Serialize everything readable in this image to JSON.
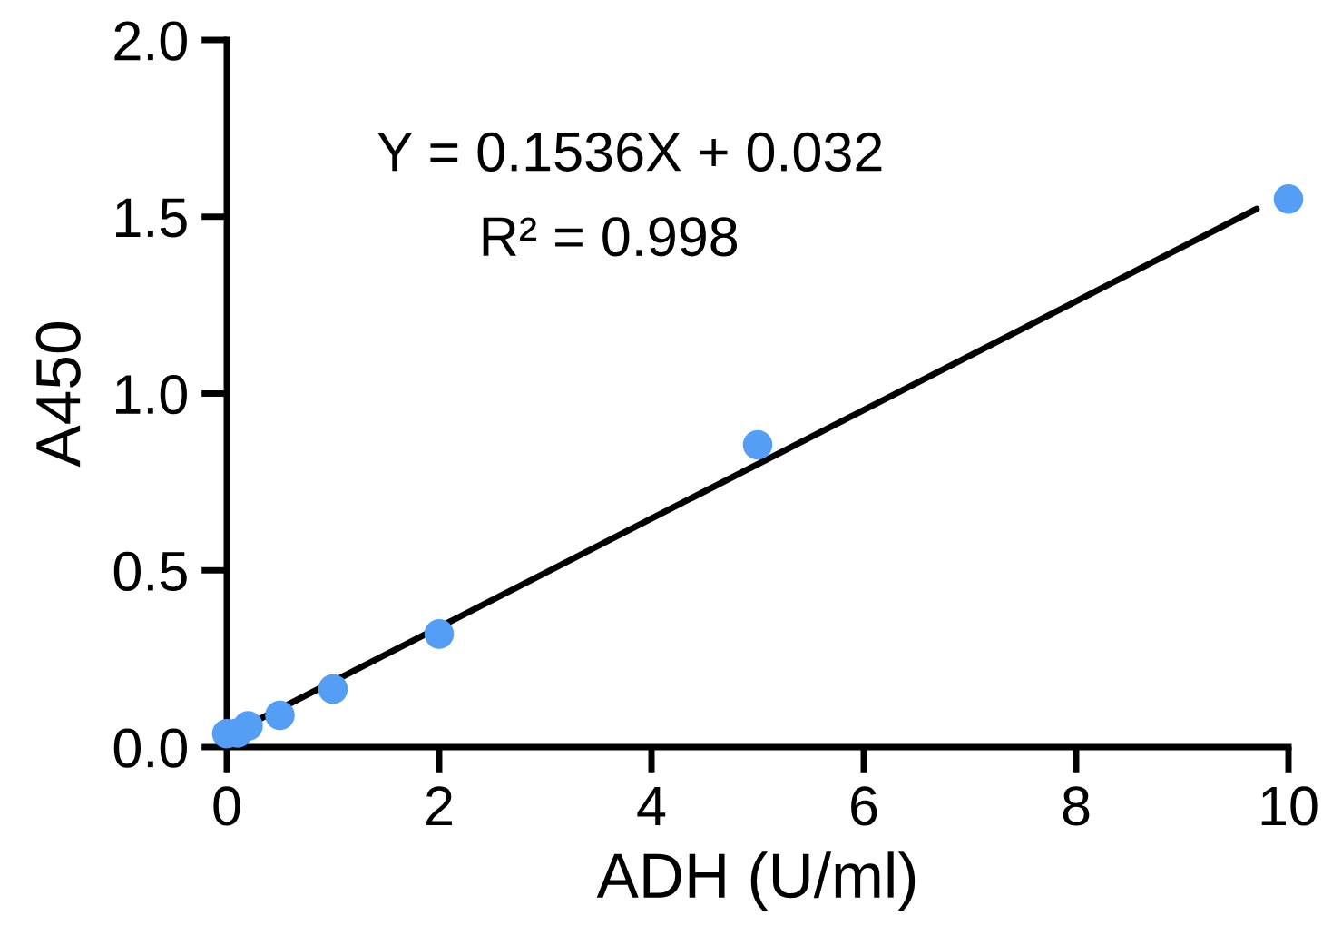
{
  "chart_data": {
    "type": "scatter",
    "xlabel": "ADH (U/ml)",
    "ylabel": "A450",
    "xlim": [
      0,
      10
    ],
    "ylim": [
      0,
      2.0
    ],
    "xticks": [
      0,
      2,
      4,
      6,
      8,
      10
    ],
    "yticks": [
      {
        "value": 0,
        "label": "0.0"
      },
      0.5,
      {
        "value": 1,
        "label": "1.0"
      },
      1.5,
      {
        "value": 2,
        "label": "2.0"
      }
    ],
    "grid": false,
    "series": [
      {
        "color": "#549ef5",
        "marker": "circle",
        "x": [
          0,
          0.1,
          0.2,
          0.5,
          1,
          2,
          5,
          10
        ],
        "values": [
          0.038,
          0.04,
          0.06,
          0.09,
          0.164,
          0.32,
          0.855,
          1.55
        ]
      },
      {
        "type": "line",
        "color": "#000000",
        "line_style": "solid",
        "marker": "none",
        "x": [
          0.3,
          9.7
        ],
        "values": [
          0.078,
          1.522
        ]
      }
    ],
    "annotations": [
      "Y = 0.1536X + 0.032",
      "R² = 0.998"
    ]
  }
}
